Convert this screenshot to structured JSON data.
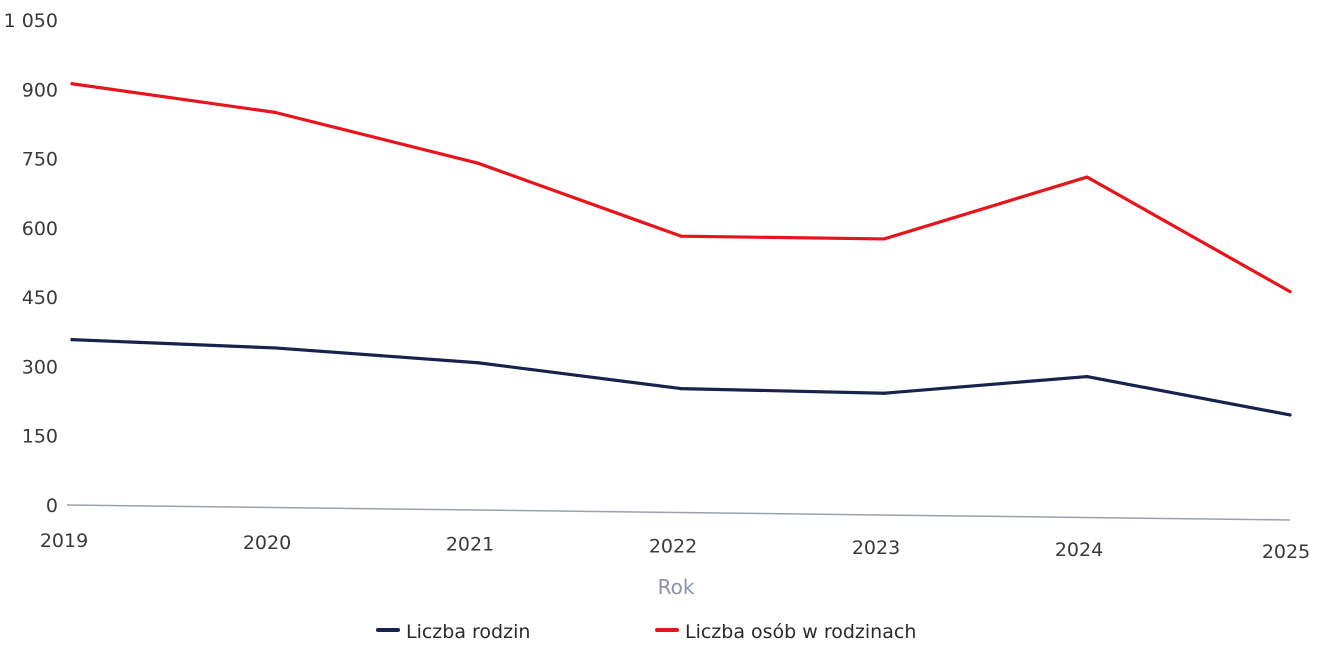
{
  "chart_data": {
    "type": "line",
    "categories": [
      "2019",
      "2020",
      "2021",
      "2022",
      "2023",
      "2024",
      "2025"
    ],
    "series": [
      {
        "name": "Liczba rodzin",
        "color": "#16234d",
        "values": [
          358,
          340,
          308,
          252,
          242,
          278,
          195
        ]
      },
      {
        "name": "Liczba osób w rodzinach",
        "color": "#e8141c",
        "values": [
          912,
          850,
          740,
          582,
          576,
          710,
          462
        ]
      }
    ],
    "title": "",
    "xlabel": "Rok",
    "ylabel": "",
    "ylim": [
      0,
      1050
    ],
    "yticks": [
      0,
      150,
      300,
      450,
      600,
      750,
      900,
      1050
    ],
    "ytick_labels": [
      "0",
      "150",
      "300",
      "450",
      "600",
      "750",
      "900",
      "1 050"
    ],
    "grid": false,
    "legend_position": "bottom-center"
  }
}
